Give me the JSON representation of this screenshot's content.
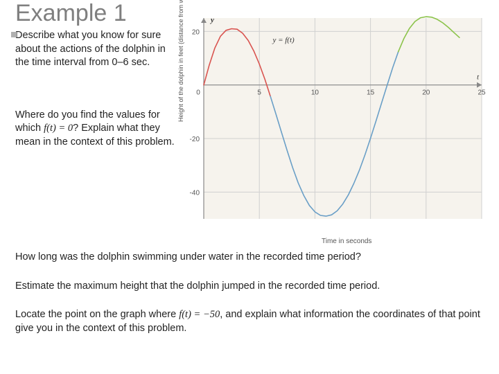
{
  "heading": "Example 1",
  "left_questions": {
    "q1_text": "Describe what you know for sure about the actions of the dolphin in the time interval from 0–6 sec.",
    "q2_part1": "Where do you find the values for which ",
    "q2_math": "f(t) = 0",
    "q2_part2": "? Explain what they mean in the context of this problem."
  },
  "bottom_questions": {
    "b1": "How long was the dolphin swimming under water in the recorded time period?",
    "b2": "Estimate the maximum height that the dolphin jumped in the recorded time period.",
    "b3_part1": "Locate the point on the graph where ",
    "b3_math": "f(t) = −50",
    "b3_part2": ", and explain what information the coordinates of that point give you in the context of this problem."
  },
  "chart": {
    "type": "line",
    "y_axis_title": "Height of the dolphin in feet (distance from water surface)",
    "x_axis_title": "Time in seconds",
    "y_label": "y",
    "t_label": "t",
    "function_label": "y = f(t)",
    "xlim": [
      0,
      25
    ],
    "ylim": [
      -50,
      25
    ],
    "x_ticks": [
      0,
      5,
      10,
      15,
      20,
      25
    ],
    "y_ticks": [
      -40,
      -20,
      0,
      20
    ],
    "background_color": "#f6f3ed",
    "grid_color": "#d0d0d0",
    "axis_color": "#888888",
    "curve_segments": [
      {
        "color": "#d9534f",
        "width": 1.6,
        "points": [
          [
            0,
            0
          ],
          [
            0.5,
            7.5
          ],
          [
            1,
            13.8
          ],
          [
            1.5,
            18.2
          ],
          [
            2,
            20.4
          ],
          [
            2.5,
            21
          ],
          [
            3,
            20.8
          ],
          [
            3.5,
            19.3
          ],
          [
            4,
            16.6
          ],
          [
            4.5,
            12.7
          ],
          [
            5,
            7.8
          ],
          [
            5.5,
            2.1
          ],
          [
            6,
            -4.3
          ],
          [
            6.0,
            -4.3
          ]
        ]
      },
      {
        "color": "#6a9fc7",
        "width": 1.6,
        "points": [
          [
            6,
            -4.3
          ],
          [
            6.5,
            -11
          ],
          [
            7,
            -17.8
          ],
          [
            7.5,
            -24.5
          ],
          [
            8,
            -30.9
          ],
          [
            8.5,
            -36.6
          ],
          [
            9,
            -41.3
          ],
          [
            9.5,
            -45
          ],
          [
            10,
            -47.4
          ],
          [
            10.5,
            -48.7
          ],
          [
            11,
            -49
          ],
          [
            11.5,
            -48.5
          ],
          [
            12,
            -47
          ],
          [
            12.5,
            -44.5
          ],
          [
            13,
            -41.1
          ],
          [
            13.5,
            -36.8
          ],
          [
            14,
            -31.8
          ],
          [
            14.5,
            -26.1
          ],
          [
            15,
            -19.9
          ],
          [
            15.5,
            -13.4
          ],
          [
            16,
            -6.7
          ],
          [
            16.5,
            0
          ],
          [
            17,
            6.5
          ],
          [
            17.5,
            12.4
          ]
        ]
      },
      {
        "color": "#8bc34a",
        "width": 1.6,
        "points": [
          [
            17.5,
            12.4
          ],
          [
            18,
            17.3
          ],
          [
            18.5,
            21.1
          ],
          [
            19,
            23.7
          ],
          [
            19.5,
            25.1
          ],
          [
            20,
            25.5
          ],
          [
            20.5,
            25.3
          ],
          [
            21,
            24.5
          ],
          [
            21.5,
            23.2
          ],
          [
            22,
            21.5
          ],
          [
            22.5,
            19.6
          ],
          [
            23,
            17.7
          ]
        ]
      }
    ]
  }
}
